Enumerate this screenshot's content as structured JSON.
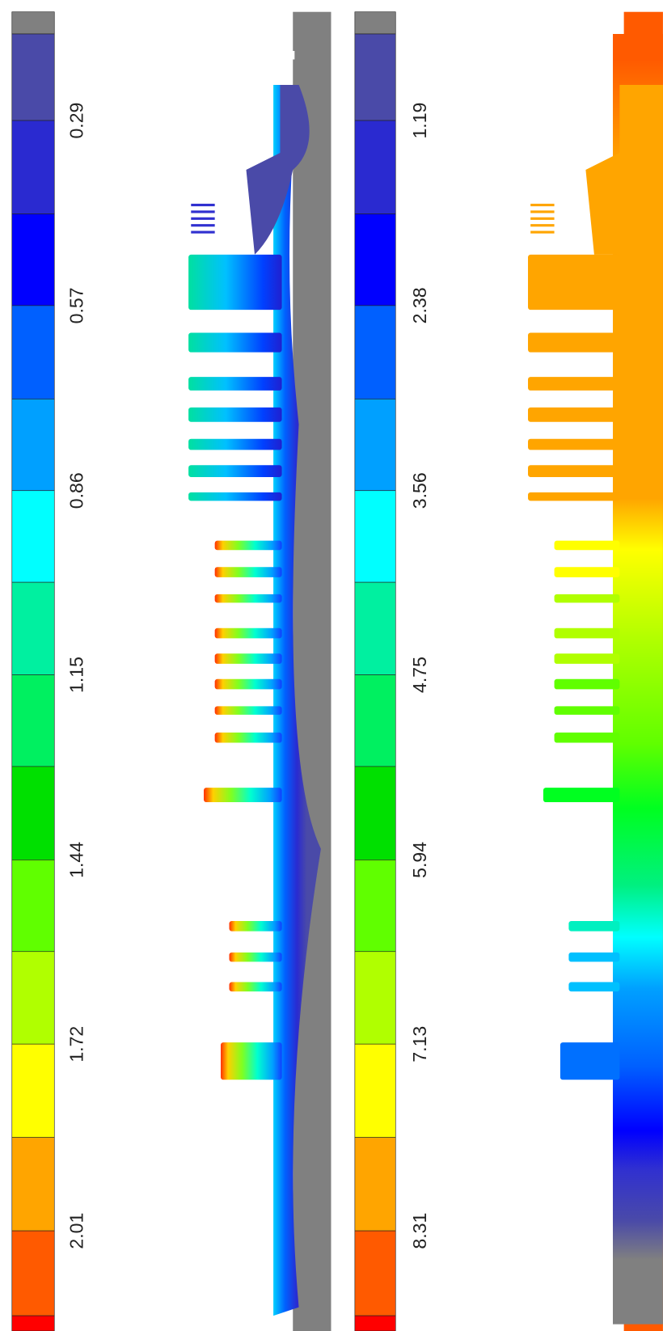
{
  "colorbars": [
    {
      "labels": [
        "0.29",
        "0.57",
        "0.86",
        "1.15",
        "1.44",
        "1.72",
        "2.01"
      ]
    },
    {
      "labels": [
        "1.19",
        "2.38",
        "3.56",
        "4.75",
        "5.94",
        "7.13",
        "8.31"
      ]
    }
  ]
}
